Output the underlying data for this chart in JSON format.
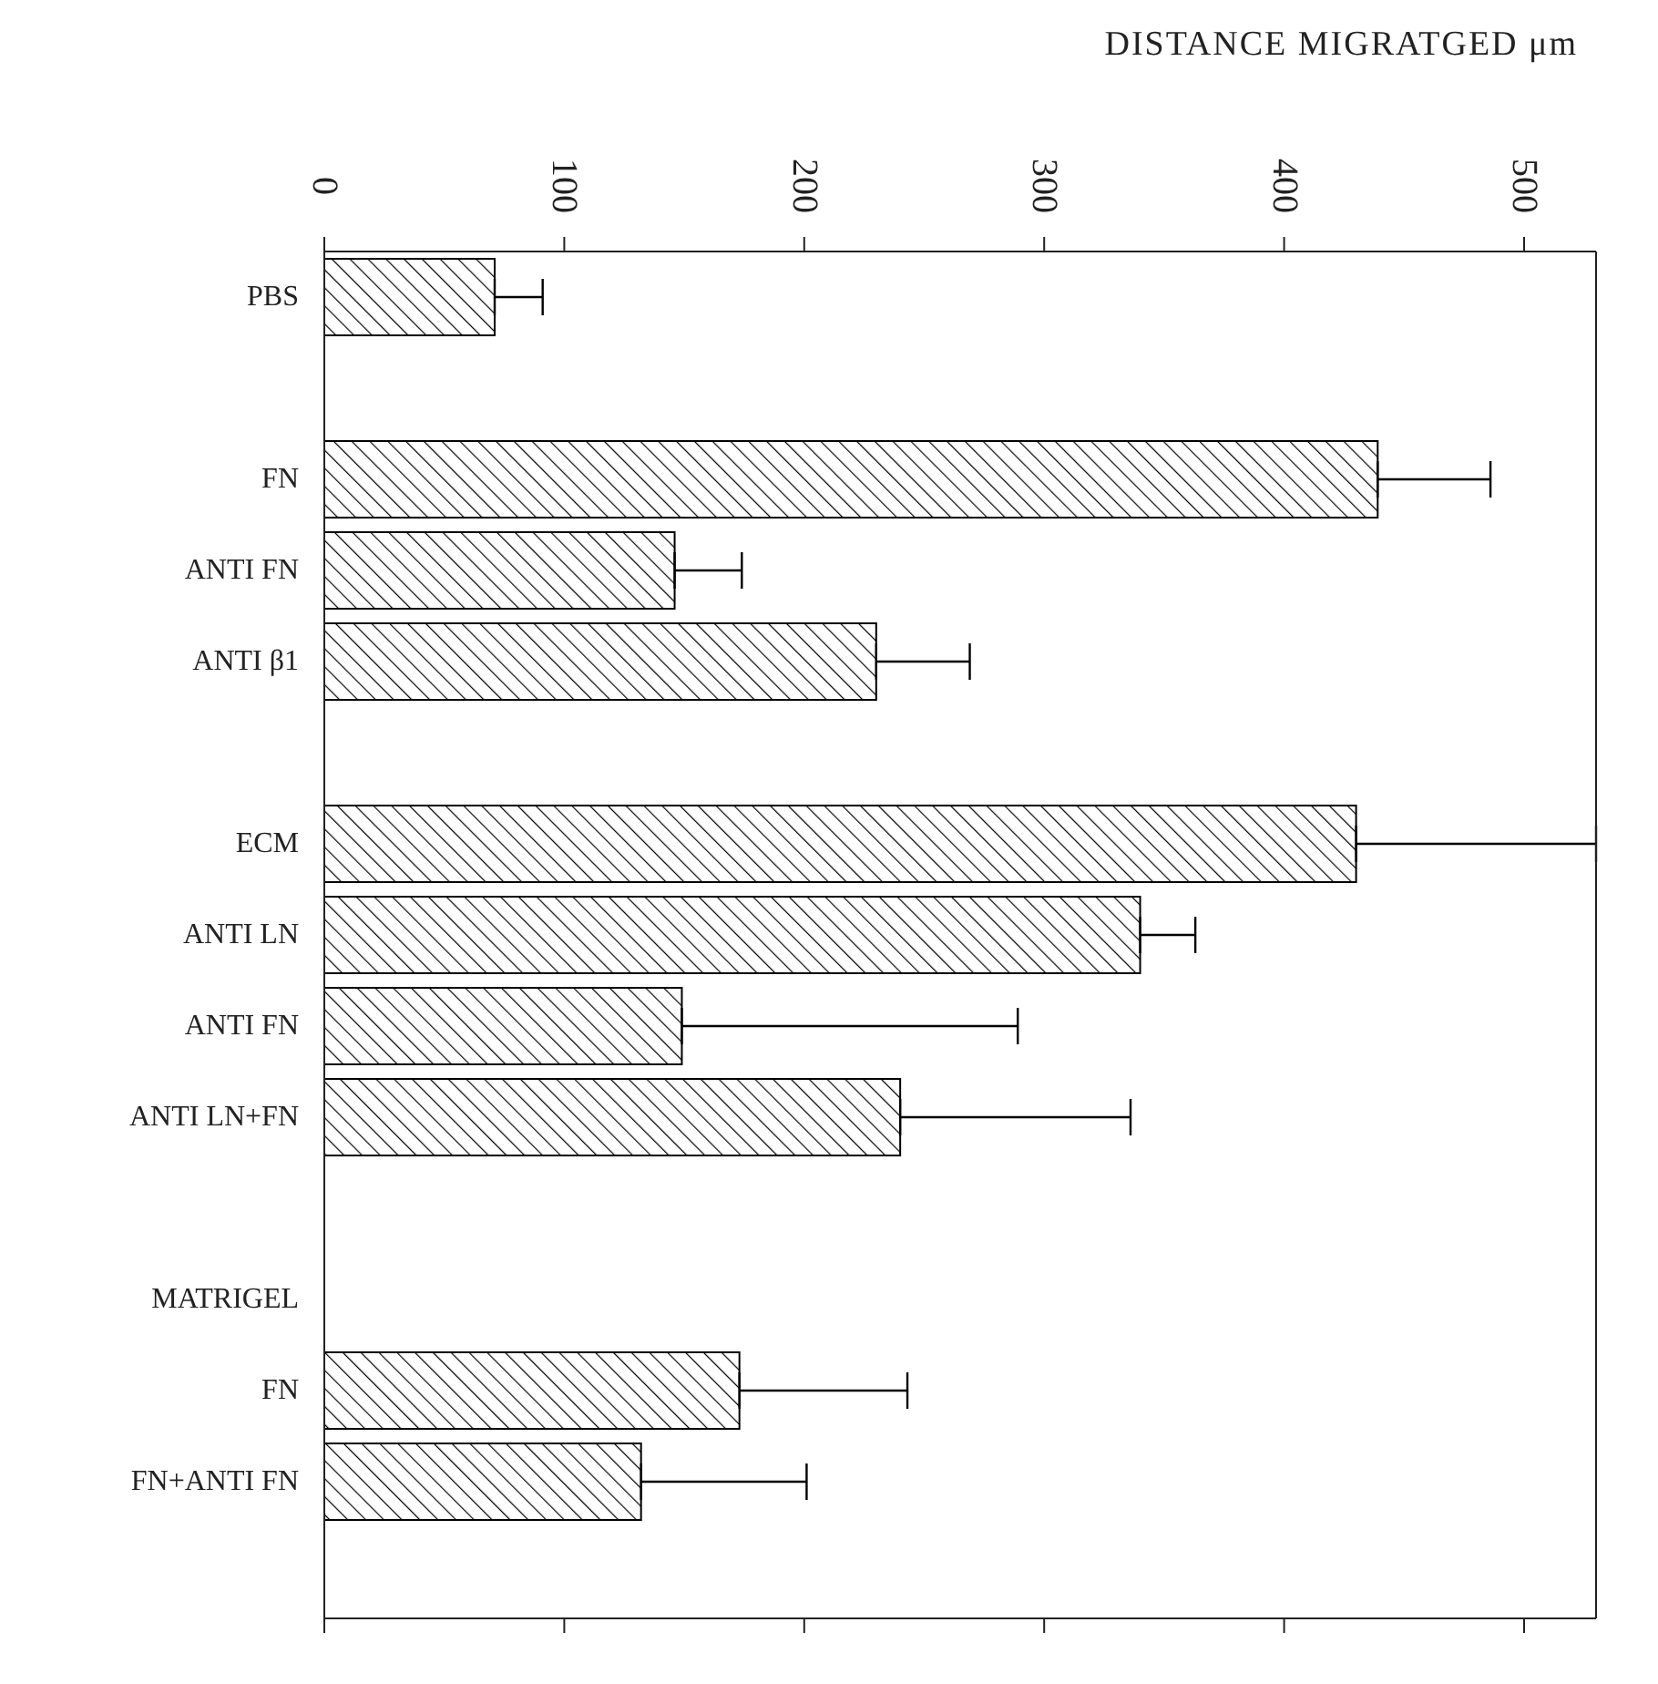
{
  "chart_data": {
    "type": "bar",
    "orientation": "horizontal",
    "xlabel": "DISTANCE MIGRATGED μm",
    "categories": [
      "PBS",
      null,
      "FN",
      "ANTI FN",
      "ANTI β1",
      null,
      "ECM",
      "ANTI LN",
      "ANTI FN",
      "ANTI LN+FN",
      null,
      "MATRIGEL",
      "FN",
      "FN+ANTI FN",
      null
    ],
    "values": [
      71,
      null,
      439,
      146,
      230,
      null,
      430,
      340,
      149,
      240,
      null,
      null,
      173,
      132,
      null
    ],
    "errors": [
      [
        71,
        91
      ],
      null,
      [
        439,
        486
      ],
      [
        146,
        174
      ],
      [
        230,
        269
      ],
      null,
      [
        430,
        530
      ],
      [
        340,
        363
      ],
      [
        149,
        289
      ],
      [
        240,
        336
      ],
      null,
      null,
      [
        173,
        243
      ],
      [
        132,
        201
      ],
      null
    ],
    "color": "#000000",
    "xlim": [
      0,
      530
    ],
    "xticks": [
      0,
      100,
      200,
      300,
      400,
      500
    ]
  }
}
